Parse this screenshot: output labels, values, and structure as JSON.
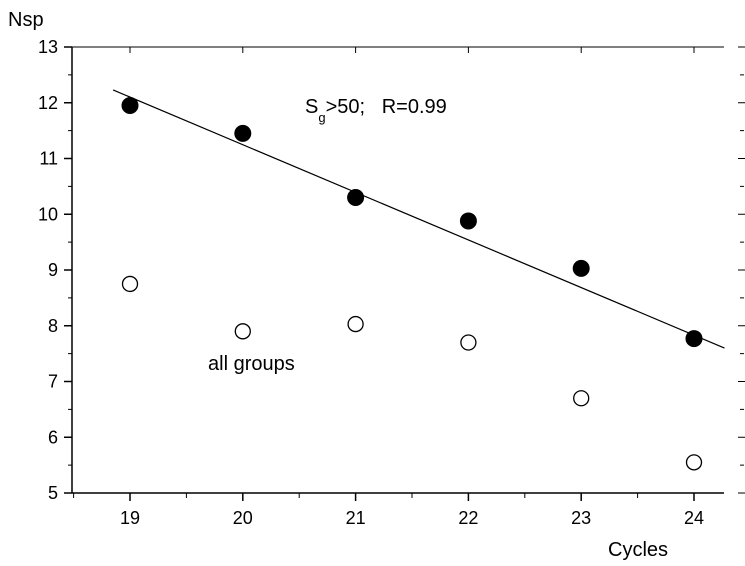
{
  "chart_data": {
    "type": "scatter",
    "xlabel": "Cycles",
    "ylabel": "Nsp",
    "xlim": [
      18.5,
      24.4
    ],
    "ylim": [
      5,
      13
    ],
    "x_ticks": [
      "19",
      "20",
      "21",
      "22",
      "23",
      "24"
    ],
    "y_ticks": [
      "5",
      "6",
      "7",
      "8",
      "9",
      "10",
      "11",
      "12",
      "13"
    ],
    "series": [
      {
        "marker": "filled-circle",
        "x": [
          19,
          20,
          21,
          22,
          23,
          24
        ],
        "y": [
          11.95,
          11.45,
          10.3,
          9.88,
          9.03,
          7.77
        ]
      },
      {
        "marker": "open-circle",
        "x": [
          19,
          20,
          21,
          22,
          23,
          24
        ],
        "y": [
          8.75,
          7.9,
          8.03,
          7.7,
          6.7,
          5.55
        ]
      }
    ],
    "fit_line": {
      "x": [
        18.85,
        24.27
      ],
      "y": [
        12.23,
        7.6
      ]
    },
    "annotations": {
      "fit_label_main": "S",
      "fit_label_sub": "g",
      "fit_label_rest": ">50;   R=0.99",
      "open_label": "all groups"
    },
    "colors": {
      "filled": "#000000",
      "open_fill": "#ffffff",
      "line": "#000000"
    }
  }
}
